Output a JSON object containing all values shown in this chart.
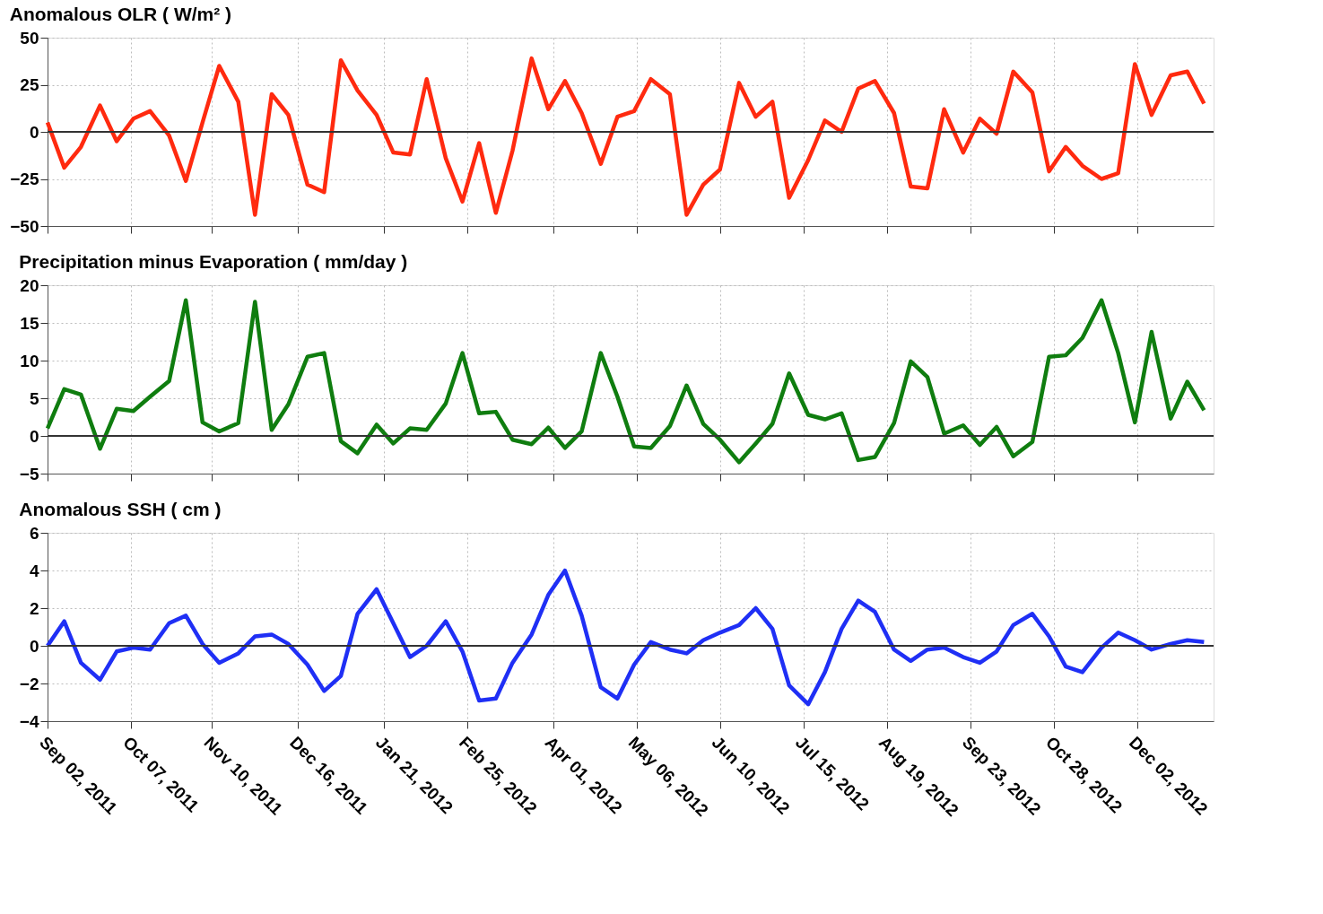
{
  "chart_data": [
    {
      "type": "line",
      "title": "Anomalous OLR ( W/m² )",
      "tick_labels": "y",
      "grid": true,
      "marker": "none",
      "line_style": "solid",
      "xlim": [
        "2011-09-02",
        "2013-01-03"
      ],
      "ylim": [
        -50,
        50
      ],
      "yticks": [
        -50,
        -25,
        0,
        25,
        50
      ],
      "xticks": [
        {
          "value": "2011-09-02",
          "label": null
        },
        {
          "value": "2011-10-07",
          "label": null
        },
        {
          "value": "2011-11-10",
          "label": null
        },
        {
          "value": "2011-12-16",
          "label": null
        },
        {
          "value": "2012-01-21",
          "label": null
        },
        {
          "value": "2012-02-25",
          "label": null
        },
        {
          "value": "2012-04-01",
          "label": null
        },
        {
          "value": "2012-05-06",
          "label": null
        },
        {
          "value": "2012-06-10",
          "label": null
        },
        {
          "value": "2012-07-15",
          "label": null
        },
        {
          "value": "2012-08-19",
          "label": null
        },
        {
          "value": "2012-09-23",
          "label": null
        },
        {
          "value": "2012-10-28",
          "label": null
        },
        {
          "value": "2012-12-02",
          "label": null
        }
      ],
      "x": [
        "2011-09-02",
        "2011-09-09",
        "2011-09-16",
        "2011-09-24",
        "2011-10-01",
        "2011-10-08",
        "2011-10-15",
        "2011-10-23",
        "2011-10-30",
        "2011-11-06",
        "2011-11-13",
        "2011-11-21",
        "2011-11-28",
        "2011-12-05",
        "2011-12-12",
        "2011-12-20",
        "2011-12-27",
        "2012-01-03",
        "2012-01-10",
        "2012-01-18",
        "2012-01-25",
        "2012-02-01",
        "2012-02-08",
        "2012-02-16",
        "2012-02-23",
        "2012-03-01",
        "2012-03-08",
        "2012-03-15",
        "2012-03-23",
        "2012-03-30",
        "2012-04-06",
        "2012-04-13",
        "2012-04-21",
        "2012-04-28",
        "2012-05-05",
        "2012-05-12",
        "2012-05-20",
        "2012-05-27",
        "2012-06-03",
        "2012-06-10",
        "2012-06-18",
        "2012-06-25",
        "2012-07-02",
        "2012-07-09",
        "2012-07-17",
        "2012-07-24",
        "2012-07-31",
        "2012-08-07",
        "2012-08-14",
        "2012-08-22",
        "2012-08-29",
        "2012-09-05",
        "2012-09-12",
        "2012-09-20",
        "2012-09-27",
        "2012-10-04",
        "2012-10-11",
        "2012-10-19",
        "2012-10-26",
        "2012-11-02",
        "2012-11-09",
        "2012-11-17",
        "2012-11-24",
        "2012-12-01",
        "2012-12-08",
        "2012-12-16",
        "2012-12-23",
        "2012-12-30"
      ],
      "ref_lines": [
        {
          "axis": "y",
          "value": 0,
          "color": "#333333"
        }
      ],
      "series": [
        {
          "color": "#ff2a0f",
          "values": [
            5,
            -19,
            -8,
            14,
            -5,
            7,
            11,
            -2,
            -26,
            5,
            35,
            16,
            -44,
            20,
            9,
            -28,
            -32,
            38,
            22,
            9,
            -11,
            -12,
            28,
            -14,
            -37,
            -6,
            -43,
            -10,
            39,
            12,
            27,
            10,
            -17,
            8,
            11,
            28,
            20,
            -44,
            -28,
            -20,
            26,
            8,
            16,
            -35,
            -15,
            6,
            0,
            23,
            27,
            10,
            -29,
            -30,
            12,
            -11,
            7,
            -1,
            32,
            21,
            -21,
            -8,
            -18,
            -25,
            -22,
            36,
            9,
            30,
            32,
            15
          ]
        }
      ]
    },
    {
      "type": "line",
      "title": "Precipitation minus Evaporation ( mm/day )",
      "tick_labels": "y",
      "grid": true,
      "marker": "none",
      "line_style": "solid",
      "xlim": [
        "2011-09-02",
        "2013-01-03"
      ],
      "ylim": [
        -5,
        20
      ],
      "yticks": [
        -5,
        0,
        5,
        10,
        15,
        20
      ],
      "xticks": [
        {
          "value": "2011-09-02",
          "label": null
        },
        {
          "value": "2011-10-07",
          "label": null
        },
        {
          "value": "2011-11-10",
          "label": null
        },
        {
          "value": "2011-12-16",
          "label": null
        },
        {
          "value": "2012-01-21",
          "label": null
        },
        {
          "value": "2012-02-25",
          "label": null
        },
        {
          "value": "2012-04-01",
          "label": null
        },
        {
          "value": "2012-05-06",
          "label": null
        },
        {
          "value": "2012-06-10",
          "label": null
        },
        {
          "value": "2012-07-15",
          "label": null
        },
        {
          "value": "2012-08-19",
          "label": null
        },
        {
          "value": "2012-09-23",
          "label": null
        },
        {
          "value": "2012-10-28",
          "label": null
        },
        {
          "value": "2012-12-02",
          "label": null
        }
      ],
      "x": [
        "2011-09-02",
        "2011-09-09",
        "2011-09-16",
        "2011-09-24",
        "2011-10-01",
        "2011-10-08",
        "2011-10-15",
        "2011-10-23",
        "2011-10-30",
        "2011-11-06",
        "2011-11-13",
        "2011-11-21",
        "2011-11-28",
        "2011-12-05",
        "2011-12-12",
        "2011-12-20",
        "2011-12-27",
        "2012-01-03",
        "2012-01-10",
        "2012-01-18",
        "2012-01-25",
        "2012-02-01",
        "2012-02-08",
        "2012-02-16",
        "2012-02-23",
        "2012-03-01",
        "2012-03-08",
        "2012-03-15",
        "2012-03-23",
        "2012-03-30",
        "2012-04-06",
        "2012-04-13",
        "2012-04-21",
        "2012-04-28",
        "2012-05-05",
        "2012-05-12",
        "2012-05-20",
        "2012-05-27",
        "2012-06-03",
        "2012-06-10",
        "2012-06-18",
        "2012-06-25",
        "2012-07-02",
        "2012-07-09",
        "2012-07-17",
        "2012-07-24",
        "2012-07-31",
        "2012-08-07",
        "2012-08-14",
        "2012-08-22",
        "2012-08-29",
        "2012-09-05",
        "2012-09-12",
        "2012-09-20",
        "2012-09-27",
        "2012-10-04",
        "2012-10-11",
        "2012-10-19",
        "2012-10-26",
        "2012-11-02",
        "2012-11-09",
        "2012-11-17",
        "2012-11-24",
        "2012-12-01",
        "2012-12-08",
        "2012-12-16",
        "2012-12-23",
        "2012-12-30"
      ],
      "ref_lines": [
        {
          "axis": "y",
          "value": 0,
          "color": "#333333"
        }
      ],
      "series": [
        {
          "color": "#0f7d0f",
          "values": [
            1,
            6.2,
            5.5,
            -1.7,
            3.6,
            3.3,
            5.2,
            7.3,
            18,
            1.8,
            0.6,
            1.7,
            17.8,
            0.8,
            4.2,
            10.5,
            11,
            -0.7,
            -2.3,
            1.5,
            -1.0,
            1.0,
            0.8,
            4.3,
            11,
            3,
            3.2,
            -0.5,
            -1.1,
            1.1,
            -1.6,
            0.6,
            11,
            5.2,
            -1.4,
            -1.6,
            1.3,
            6.7,
            1.6,
            -0.5,
            -3.5,
            -1.0,
            1.6,
            8.3,
            2.8,
            2.2,
            3,
            -3.2,
            -2.8,
            1.7,
            9.9,
            7.8,
            0.3,
            1.4,
            -1.2,
            1.2,
            -2.7,
            -0.8,
            10.5,
            10.7,
            13,
            18,
            11,
            1.8,
            13.8,
            2.3,
            7.2,
            3.4
          ]
        }
      ]
    },
    {
      "type": "line",
      "title": "Anomalous SSH ( cm )",
      "grid": true,
      "marker": "none",
      "line_style": "solid",
      "xlim": [
        "2011-09-02",
        "2013-01-03"
      ],
      "ylim": [
        -4,
        6
      ],
      "yticks": [
        -4,
        -2,
        0,
        2,
        4,
        6
      ],
      "xticks": [
        {
          "value": "2011-09-02",
          "label": "Sep 02, 2011"
        },
        {
          "value": "2011-10-07",
          "label": "Oct 07, 2011"
        },
        {
          "value": "2011-11-10",
          "label": "Nov 10, 2011"
        },
        {
          "value": "2011-12-16",
          "label": "Dec 16, 2011"
        },
        {
          "value": "2012-01-21",
          "label": "Jan 21, 2012"
        },
        {
          "value": "2012-02-25",
          "label": "Feb 25, 2012"
        },
        {
          "value": "2012-04-01",
          "label": "Apr 01, 2012"
        },
        {
          "value": "2012-05-06",
          "label": "May 06, 2012"
        },
        {
          "value": "2012-06-10",
          "label": "Jun 10, 2012"
        },
        {
          "value": "2012-07-15",
          "label": "Jul 15, 2012"
        },
        {
          "value": "2012-08-19",
          "label": "Aug 19, 2012"
        },
        {
          "value": "2012-09-23",
          "label": "Sep 23, 2012"
        },
        {
          "value": "2012-10-28",
          "label": "Oct 28, 2012"
        },
        {
          "value": "2012-12-02",
          "label": "Dec 02, 2012"
        }
      ],
      "x": [
        "2011-09-02",
        "2011-09-09",
        "2011-09-16",
        "2011-09-24",
        "2011-10-01",
        "2011-10-08",
        "2011-10-15",
        "2011-10-23",
        "2011-10-30",
        "2011-11-06",
        "2011-11-13",
        "2011-11-21",
        "2011-11-28",
        "2011-12-05",
        "2011-12-12",
        "2011-12-20",
        "2011-12-27",
        "2012-01-03",
        "2012-01-10",
        "2012-01-18",
        "2012-01-25",
        "2012-02-01",
        "2012-02-08",
        "2012-02-16",
        "2012-02-23",
        "2012-03-01",
        "2012-03-08",
        "2012-03-15",
        "2012-03-23",
        "2012-03-30",
        "2012-04-06",
        "2012-04-13",
        "2012-04-21",
        "2012-04-28",
        "2012-05-05",
        "2012-05-12",
        "2012-05-20",
        "2012-05-27",
        "2012-06-03",
        "2012-06-10",
        "2012-06-18",
        "2012-06-25",
        "2012-07-02",
        "2012-07-09",
        "2012-07-17",
        "2012-07-24",
        "2012-07-31",
        "2012-08-07",
        "2012-08-14",
        "2012-08-22",
        "2012-08-29",
        "2012-09-05",
        "2012-09-12",
        "2012-09-20",
        "2012-09-27",
        "2012-10-04",
        "2012-10-11",
        "2012-10-19",
        "2012-10-26",
        "2012-11-02",
        "2012-11-09",
        "2012-11-17",
        "2012-11-24",
        "2012-12-01",
        "2012-12-08",
        "2012-12-16",
        "2012-12-23",
        "2012-12-30"
      ],
      "ref_lines": [
        {
          "axis": "y",
          "value": 0,
          "color": "#333333"
        }
      ],
      "series": [
        {
          "color": "#1f2ff5",
          "values": [
            0,
            1.3,
            -0.9,
            -1.8,
            -0.3,
            -0.1,
            -0.2,
            1.2,
            1.6,
            0.1,
            -0.9,
            -0.4,
            0.5,
            0.6,
            0.1,
            -1.0,
            -2.4,
            -1.6,
            1.7,
            3.0,
            1.2,
            -0.6,
            0.0,
            1.3,
            -0.3,
            -2.9,
            -2.8,
            -0.9,
            0.6,
            2.7,
            4.0,
            1.6,
            -2.2,
            -2.8,
            -1.0,
            0.2,
            -0.2,
            -0.4,
            0.3,
            0.7,
            1.1,
            2.0,
            0.9,
            -2.1,
            -3.1,
            -1.4,
            0.9,
            2.4,
            1.8,
            -0.2,
            -0.8,
            -0.2,
            -0.1,
            -0.6,
            -0.9,
            -0.3,
            1.1,
            1.7,
            0.5,
            -1.1,
            -1.4,
            -0.1,
            0.7,
            0.3,
            -0.2,
            0.1,
            0.3,
            0.2
          ]
        }
      ]
    }
  ]
}
